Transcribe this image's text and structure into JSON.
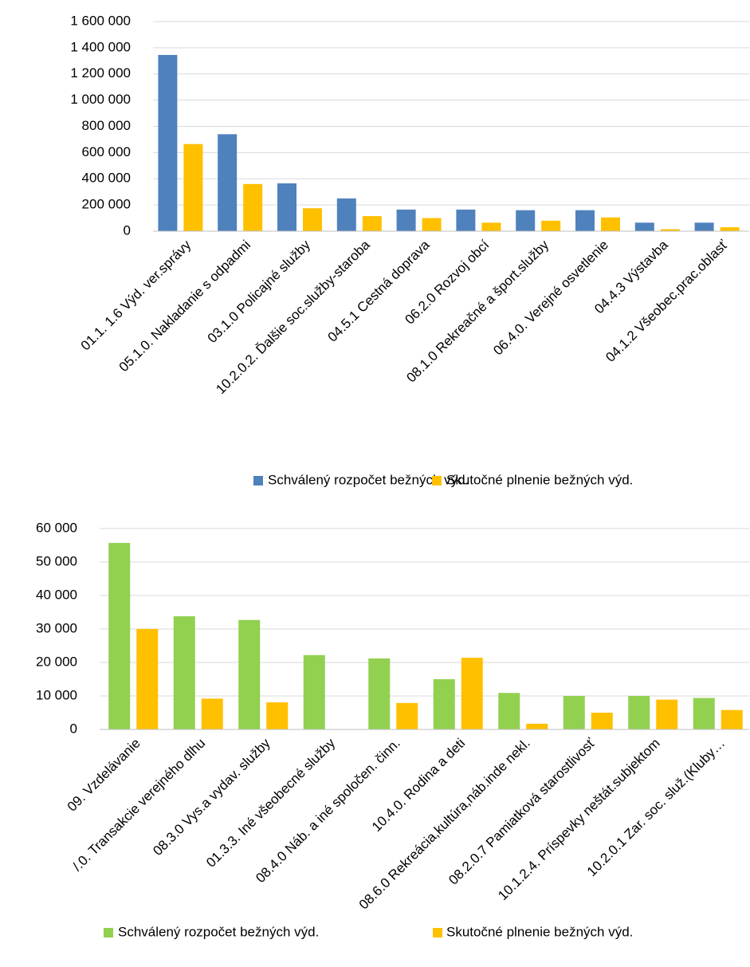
{
  "chart_data": [
    {
      "type": "bar",
      "legend": "bottom",
      "grid": true,
      "categories": [
        "01.1. 1.6 Výd. ver.správy",
        "05.1.0. Nakladanie s odpadmi",
        "03.1.0 Policajné služby",
        "10.2.0.2. Ďalšie soc.služby-staroba",
        "04.5.1 Cestná doprava",
        "06.2.0 Rozvoj obcí",
        "08.1.0 Rekreačné a šport.služby",
        "06.4.0. Verejné osvetlenie",
        "04.4.3 Výstavba",
        "04.1.2 Všeobec.prac.oblasť"
      ],
      "series": [
        {
          "name": "Schválený rozpočet bežných výd.",
          "color": "#4f81bd",
          "values": [
            1345000,
            740000,
            365000,
            250000,
            165000,
            165000,
            160000,
            160000,
            65000,
            65000
          ]
        },
        {
          "name": "Skutočné plnenie bežných výd.",
          "color": "#ffc000",
          "values": [
            665000,
            360000,
            175000,
            115000,
            100000,
            65000,
            80000,
            105000,
            15000,
            30000
          ]
        }
      ],
      "ylim": [
        0,
        1600000
      ],
      "yticks": [
        0,
        {
          "value": 200000,
          "label": "200 000"
        },
        {
          "value": 400000,
          "label": "400 000"
        },
        {
          "value": 600000,
          "label": "600 000"
        },
        {
          "value": 800000,
          "label": "800 000"
        },
        {
          "value": 1000000,
          "label": "1 000 000"
        },
        {
          "value": 1200000,
          "label": "1 200 000"
        },
        {
          "value": 1400000,
          "label": "1 400 000"
        },
        {
          "value": 1600000,
          "label": "1 600 000"
        }
      ]
    },
    {
      "type": "bar",
      "legend": "bottom",
      "grid": true,
      "categories": [
        "09. Vzdelávanie",
        "/.0. Transakcie verejného dlhu",
        "08.3.0 Vys.a vydav. služby",
        "01.3.3. Iné všeobecné služby",
        "08.4.0 Náb. a iné spoločen. činn.",
        "10.4.0. Rodina a deti",
        "08.6.0 Rekreácia,kultúra,náb.inde nekl.",
        "08.2.0.7 Pamiatková starostlivosť",
        "10.1.2.4. Príspevky neštát.subjektom",
        "10.2.0.1 Zar. soc. služ.(Kluby…"
      ],
      "series": [
        {
          "name": "Schválený rozpočet bežných výd.",
          "color": "#92d050",
          "values": [
            55700,
            33800,
            32700,
            22200,
            21200,
            15000,
            10900,
            10000,
            10000,
            9400
          ]
        },
        {
          "name": "Skutočné plnenie bežných výd.",
          "color": "#ffc000",
          "values": [
            30000,
            9200,
            8100,
            0,
            7900,
            21400,
            1700,
            5000,
            8900,
            5800
          ]
        }
      ],
      "ylim": [
        0,
        60000
      ],
      "yticks": [
        0,
        {
          "value": 10000,
          "label": "10 000"
        },
        {
          "value": 20000,
          "label": "20 000"
        },
        {
          "value": 30000,
          "label": "30 000"
        },
        {
          "value": 40000,
          "label": "40 000"
        },
        {
          "value": 50000,
          "label": "50 000"
        },
        {
          "value": 60000,
          "label": "60 000"
        }
      ]
    }
  ]
}
